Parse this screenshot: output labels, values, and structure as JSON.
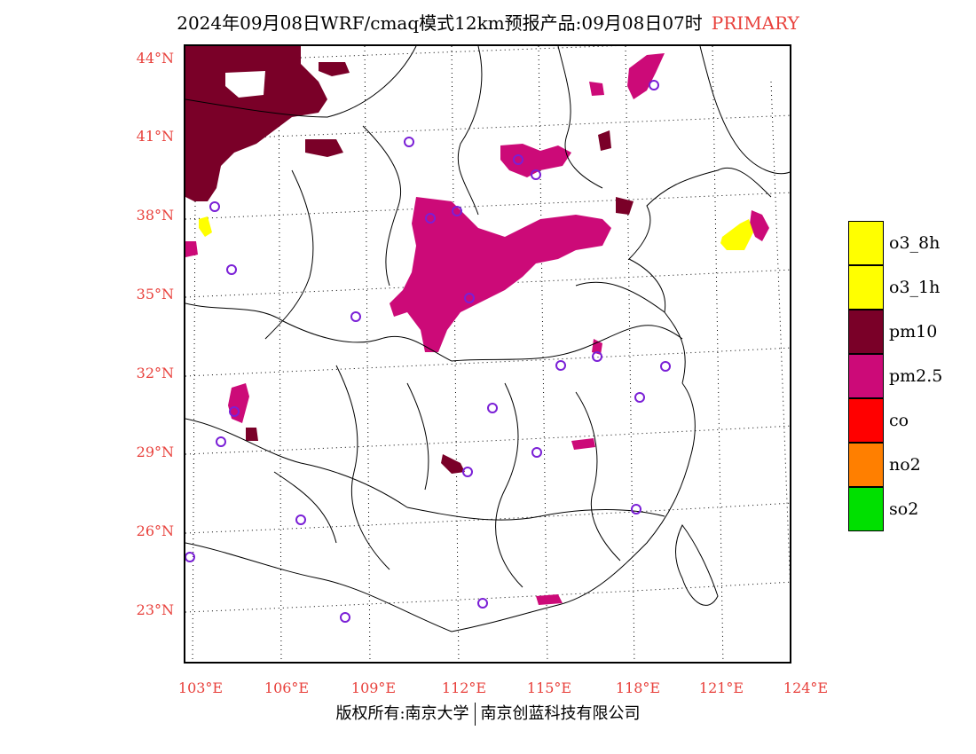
{
  "title": {
    "text": "2024年09月08日WRF/cmaq模式12km预报产品:09月08日07时",
    "tag": "PRIMARY",
    "tag_color": "#e8413c"
  },
  "latitude_labels": [
    "44°N",
    "41°N",
    "38°N",
    "35°N",
    "32°N",
    "29°N",
    "26°N",
    "23°N"
  ],
  "longitude_labels": [
    "103°E",
    "106°E",
    "109°E",
    "112°E",
    "115°E",
    "118°E",
    "121°E",
    "124°E"
  ],
  "legend": {
    "items": [
      {
        "label": "o3_8h",
        "color": "#ffff00"
      },
      {
        "label": "o3_1h",
        "color": "#ffff00"
      },
      {
        "label": "pm10",
        "color": "#7a0028"
      },
      {
        "label": "pm2.5",
        "color": "#cc0a78"
      },
      {
        "label": "co",
        "color": "#ff0000"
      },
      {
        "label": "no2",
        "color": "#ff7f00"
      },
      {
        "label": "so2",
        "color": "#00e000"
      }
    ]
  },
  "footer": {
    "left": "版权所有:南京大学",
    "right": "南京创蓝科技有限公司"
  }
}
